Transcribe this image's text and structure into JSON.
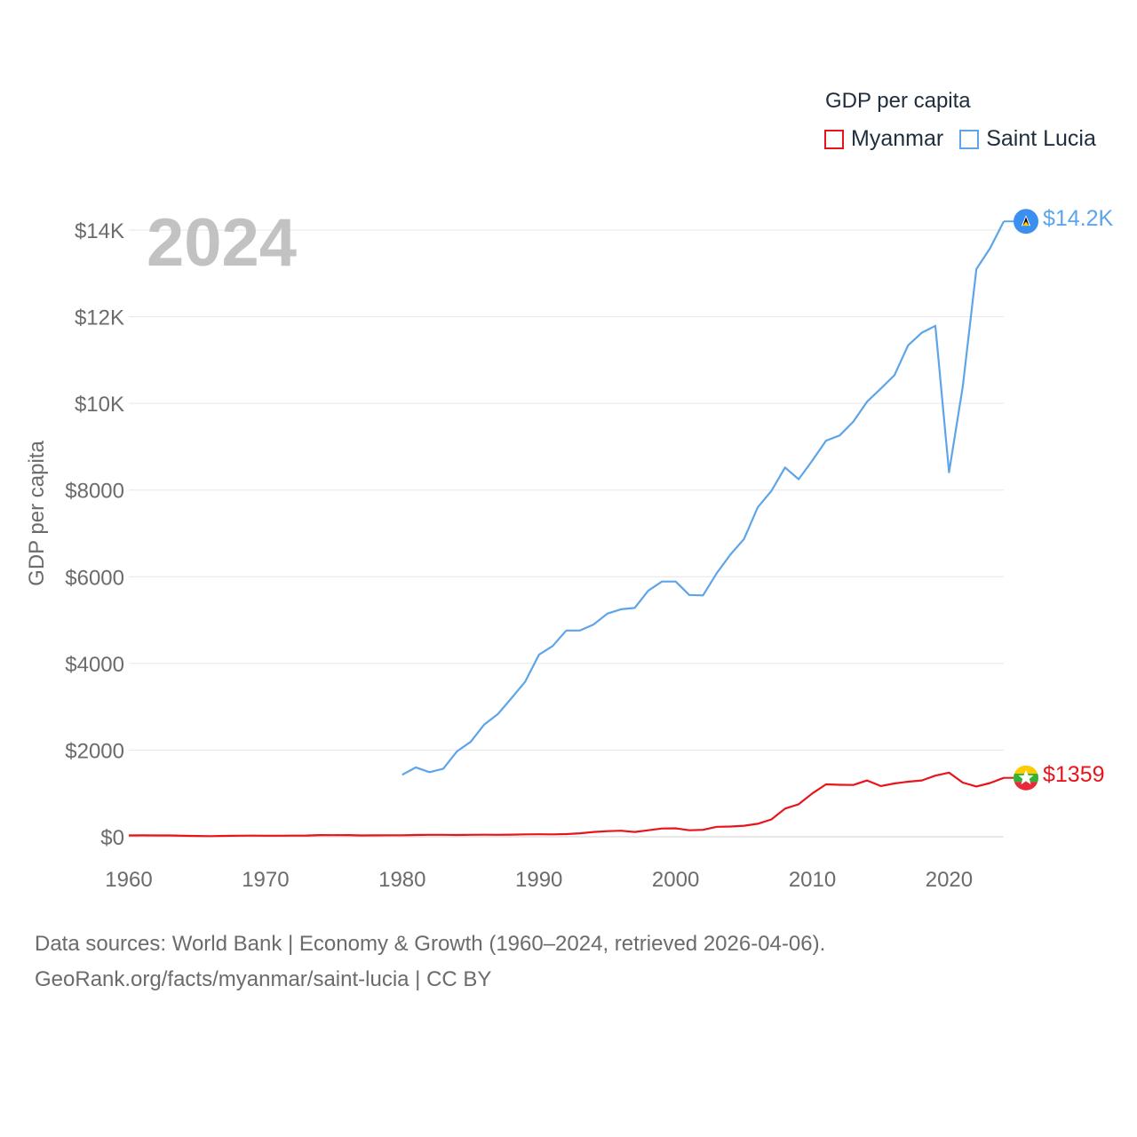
{
  "chart_data": {
    "type": "line",
    "title": "GDP per capita",
    "ylabel": "GDP per capita",
    "xlabel": "",
    "xlim": [
      1960,
      2024
    ],
    "ylim": [
      0,
      14200
    ],
    "x_ticks": [
      1960,
      1970,
      1980,
      1990,
      2000,
      2010,
      2020
    ],
    "y_ticks": [
      {
        "value": 0,
        "label": "$0"
      },
      {
        "value": 2000,
        "label": "$2000"
      },
      {
        "value": 4000,
        "label": "$4000"
      },
      {
        "value": 6000,
        "label": "$6000"
      },
      {
        "value": 8000,
        "label": "$8000"
      },
      {
        "value": 10000,
        "label": "$10K"
      },
      {
        "value": 12000,
        "label": "$12K"
      },
      {
        "value": 14000,
        "label": "$14K"
      }
    ],
    "grid": true,
    "legend_position": "top-right",
    "year_overlay": "2024",
    "series": [
      {
        "name": "Myanmar",
        "color": "#e8141c",
        "end_label": "$1359",
        "flag_icon": "myanmar-flag-icon",
        "x": [
          1960,
          1961,
          1962,
          1963,
          1964,
          1965,
          1966,
          1967,
          1968,
          1969,
          1970,
          1971,
          1972,
          1973,
          1974,
          1975,
          1976,
          1977,
          1978,
          1979,
          1980,
          1981,
          1982,
          1983,
          1984,
          1985,
          1986,
          1987,
          1988,
          1989,
          1990,
          1991,
          1992,
          1993,
          1994,
          1995,
          1996,
          1997,
          1998,
          1999,
          2000,
          2001,
          2002,
          2003,
          2004,
          2005,
          2006,
          2007,
          2008,
          2009,
          2010,
          2011,
          2012,
          2013,
          2014,
          2015,
          2016,
          2017,
          2018,
          2019,
          2020,
          2021,
          2022,
          2023,
          2024
        ],
        "values": [
          30,
          32,
          31,
          30,
          22,
          18,
          15,
          20,
          25,
          27,
          25,
          24,
          26,
          28,
          38,
          36,
          38,
          30,
          33,
          34,
          35,
          40,
          45,
          45,
          40,
          45,
          48,
          45,
          50,
          55,
          58,
          56,
          62,
          80,
          110,
          130,
          140,
          110,
          150,
          190,
          195,
          150,
          160,
          230,
          235,
          255,
          300,
          400,
          650,
          750,
          1000,
          1210,
          1200,
          1195,
          1300,
          1170,
          1230,
          1270,
          1300,
          1410,
          1480,
          1250,
          1160,
          1240,
          1359
        ]
      },
      {
        "name": "Saint Lucia",
        "color": "#5da5e8",
        "end_label": "$14.2K",
        "flag_icon": "saint-lucia-flag-icon",
        "x": [
          1980,
          1981,
          1982,
          1983,
          1984,
          1985,
          1986,
          1987,
          1988,
          1989,
          1990,
          1991,
          1992,
          1993,
          1994,
          1995,
          1996,
          1997,
          1998,
          1999,
          2000,
          2001,
          2002,
          2003,
          2004,
          2005,
          2006,
          2007,
          2008,
          2009,
          2010,
          2011,
          2012,
          2013,
          2014,
          2015,
          2016,
          2017,
          2018,
          2019,
          2020,
          2021,
          2022,
          2023,
          2024
        ],
        "values": [
          1430,
          1600,
          1490,
          1570,
          1970,
          2190,
          2590,
          2830,
          3200,
          3580,
          4200,
          4400,
          4760,
          4760,
          4900,
          5150,
          5250,
          5280,
          5680,
          5890,
          5890,
          5580,
          5570,
          6080,
          6510,
          6870,
          7600,
          7980,
          8520,
          8250,
          8680,
          9140,
          9260,
          9580,
          10040,
          10340,
          10650,
          11340,
          11630,
          11790,
          8410,
          10380,
          13100,
          13580,
          14200
        ]
      }
    ],
    "source_line1": "Data sources: World Bank | Economy & Growth (1960–2024, retrieved 2026-04-06).",
    "source_line2": "GeoRank.org/facts/myanmar/saint-lucia | CC BY"
  }
}
